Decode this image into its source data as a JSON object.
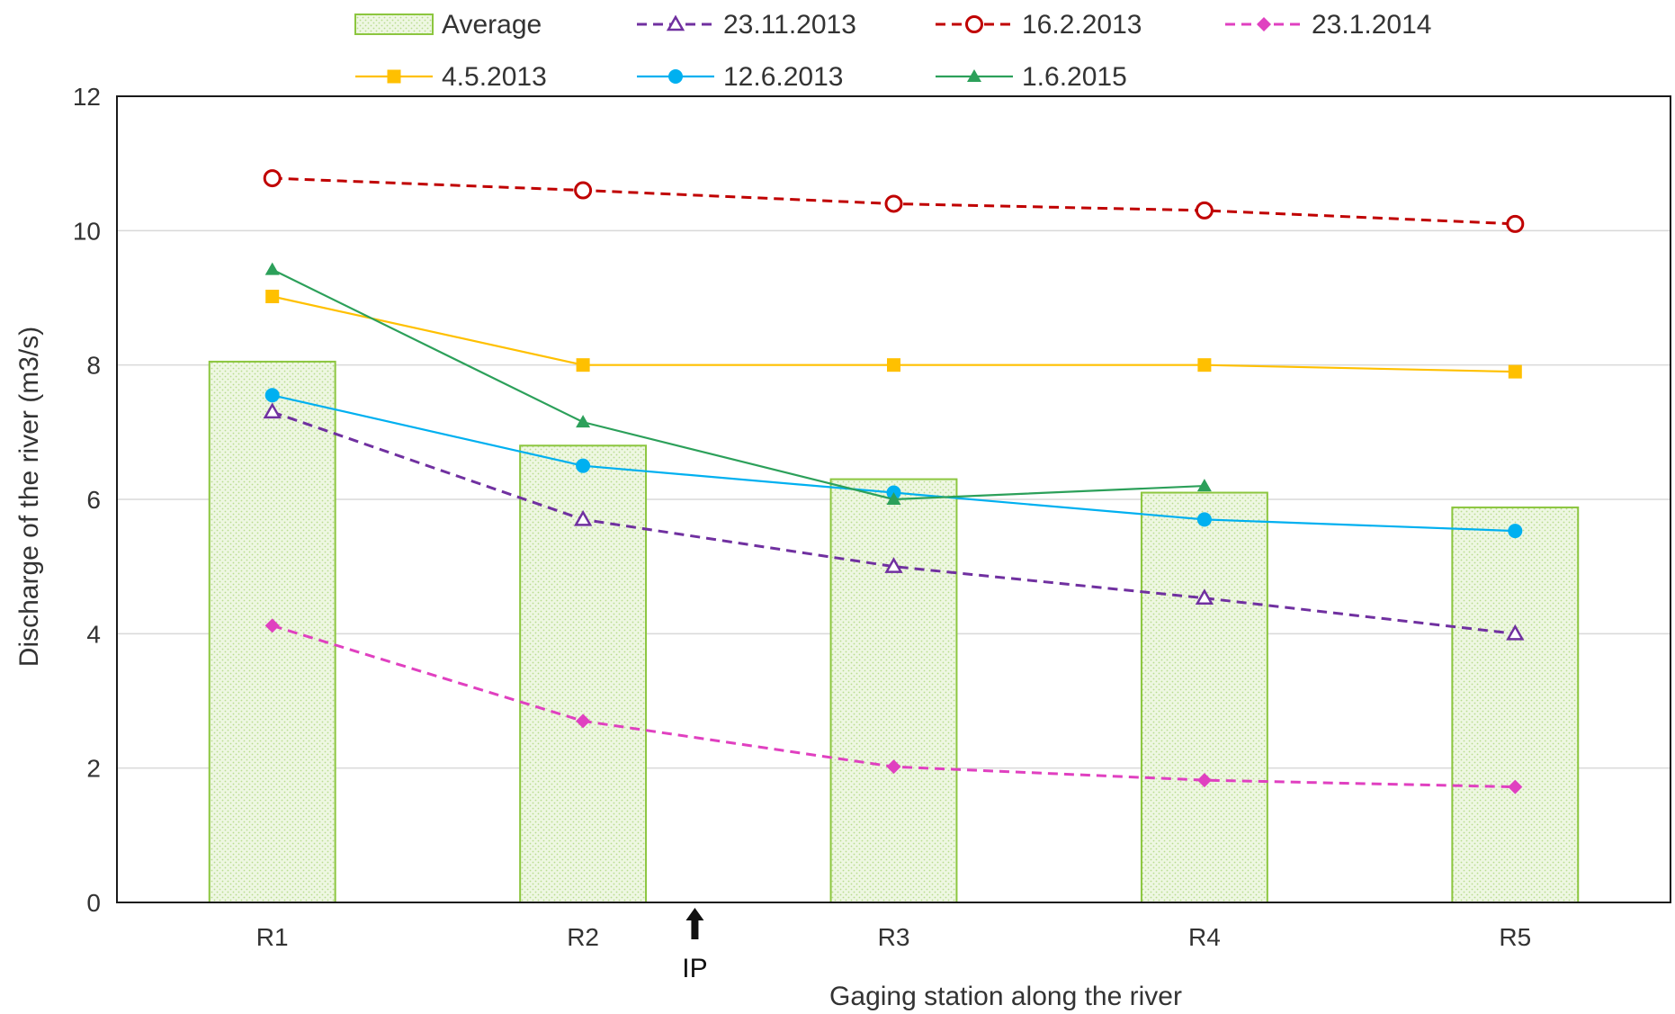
{
  "chart_data": {
    "type": "bar",
    "categories": [
      "R1",
      "R2",
      "R3",
      "R4",
      "R5"
    ],
    "xlabel": "Gaging station along the river",
    "ylabel": "Discharge of the river (m3/s)",
    "ylim": [
      0,
      12
    ],
    "yticks": [
      0,
      2,
      4,
      6,
      8,
      10,
      12
    ],
    "grid": "horizontal",
    "legend_position": "top",
    "bar_series": {
      "name": "Average",
      "values": [
        8.05,
        6.8,
        6.3,
        6.1,
        5.88
      ],
      "fill": "#eaf5dc",
      "stroke": "#8cc63f"
    },
    "line_series": [
      {
        "name": "23.11.2013",
        "values": [
          7.3,
          5.7,
          5.0,
          4.53,
          4.0
        ],
        "color": "#7030a0",
        "dash": true,
        "marker": "triangle-open"
      },
      {
        "name": "16.2.2013",
        "values": [
          10.78,
          10.6,
          10.4,
          10.3,
          10.1
        ],
        "color": "#c00000",
        "dash": true,
        "marker": "circle-open"
      },
      {
        "name": "23.1.2014",
        "values": [
          4.12,
          2.7,
          2.02,
          1.82,
          1.72
        ],
        "color": "#e040c0",
        "dash": true,
        "marker": "diamond"
      },
      {
        "name": "4.5.2013",
        "values": [
          9.02,
          8.0,
          8.0,
          8.0,
          7.9
        ],
        "color": "#ffc000",
        "dash": false,
        "marker": "square"
      },
      {
        "name": "12.6.2013",
        "values": [
          7.55,
          6.5,
          6.1,
          5.7,
          5.53
        ],
        "color": "#00b0f0",
        "dash": false,
        "marker": "circle"
      },
      {
        "name": "1.6.2015",
        "values": [
          9.42,
          7.15,
          6.0,
          6.2,
          null
        ],
        "color": "#2ca05a",
        "dash": false,
        "marker": "triangle"
      }
    ],
    "annotation": {
      "text": "IP",
      "position_between": [
        "R2",
        "R3"
      ],
      "fraction": 0.36
    }
  }
}
